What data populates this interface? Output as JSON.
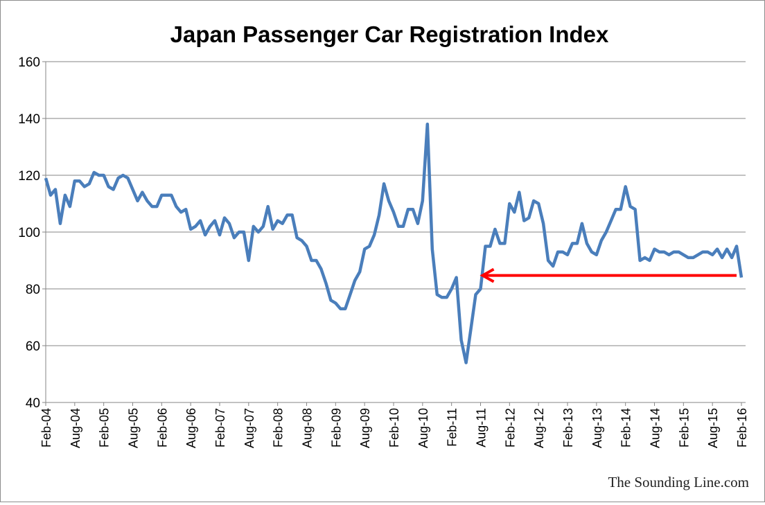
{
  "chart_data": {
    "type": "line",
    "title": "Japan Passenger Car Registration Index",
    "xlabel": "",
    "ylabel": "",
    "ylim": [
      40,
      160
    ],
    "yticks": [
      "40",
      "60",
      "80",
      "100",
      "120",
      "140",
      "160"
    ],
    "xticks": [
      "Feb-04",
      "Aug-04",
      "Feb-05",
      "Aug-05",
      "Feb-06",
      "Aug-06",
      "Feb-07",
      "Aug-07",
      "Feb-08",
      "Aug-08",
      "Feb-09",
      "Aug-09",
      "Feb-10",
      "Aug-10",
      "Feb-11",
      "Aug-11",
      "Feb-12",
      "Aug-12",
      "Feb-13",
      "Aug-13",
      "Feb-14",
      "Aug-14",
      "Feb-15",
      "Aug-15",
      "Feb-16"
    ],
    "x_start": "Feb-04",
    "x_end": "Feb-16",
    "frequency": "monthly",
    "grid": "horizontal",
    "series_color": "#4a7ebb",
    "values": [
      119,
      113,
      115,
      103,
      113,
      109,
      118,
      118,
      116,
      117,
      121,
      120,
      120,
      116,
      115,
      119,
      120,
      119,
      115,
      111,
      114,
      111,
      109,
      109,
      113,
      113,
      113,
      109,
      107,
      108,
      101,
      102,
      104,
      99,
      102,
      104,
      99,
      105,
      103,
      98,
      100,
      100,
      90,
      102,
      100,
      102,
      109,
      101,
      104,
      103,
      106,
      106,
      98,
      97,
      95,
      90,
      90,
      87,
      82,
      76,
      75,
      73,
      73,
      78,
      83,
      86,
      94,
      95,
      99,
      106,
      117,
      111,
      107,
      102,
      102,
      108,
      108,
      103,
      111,
      138,
      94,
      78,
      77,
      77,
      80,
      84,
      62,
      54,
      66,
      78,
      80,
      95,
      95,
      101,
      96,
      96,
      110,
      107,
      114,
      104,
      105,
      111,
      110,
      103,
      90,
      88,
      93,
      93,
      92,
      96,
      96,
      103,
      96,
      93,
      92,
      97,
      100,
      104,
      108,
      108,
      116,
      109,
      108,
      90,
      91,
      90,
      94,
      93,
      93,
      92,
      93,
      93,
      92,
      91,
      91,
      92,
      93,
      93,
      92,
      94,
      91,
      94,
      91,
      95,
      84
    ],
    "annotation": {
      "type": "arrow",
      "color": "#ff0000",
      "from": "Feb-16",
      "to": "Aug-11",
      "y": 84
    }
  },
  "watermark": "The Sounding Line.com"
}
